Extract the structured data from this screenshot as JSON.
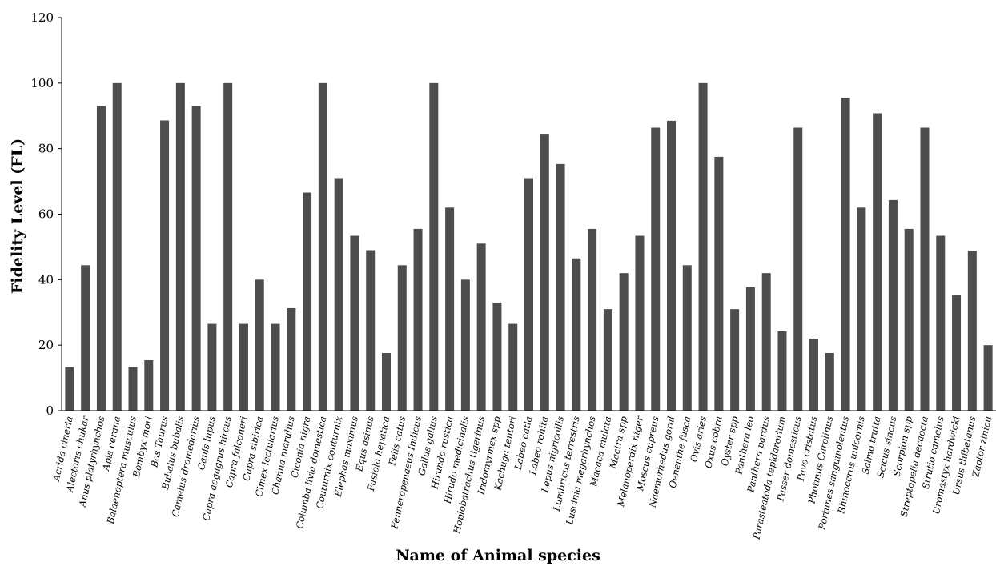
{
  "chart_data": {
    "type": "bar",
    "xlabel": "Name of Animal species",
    "ylabel": "Fidelity Level (FL)",
    "ylim": [
      0,
      120
    ],
    "yticks": [
      0,
      20,
      40,
      60,
      80,
      100,
      120
    ],
    "grid": false,
    "bar_color": "#4d4d4d",
    "categories": [
      "Acrida cineria",
      "Alectoris chukar",
      "Anus platyrhynchos",
      "Apis cerana",
      "Balaenoptera musculus",
      "Bombyx mori",
      "Bos Taurus",
      "Bubalus bubalis",
      "Camelus dromedarius",
      "Canis lupus",
      "Capra aegagrus hircus",
      "Capra falconeri",
      "Capra sibirica",
      "Cimex lectularius",
      "Channa marulius",
      "Ciconia nigra",
      "Columba livia domestica",
      "Couturnix couturnix",
      "Elephas maximus",
      "Equs asinus",
      "Fasiola hepatica",
      "Felis catus",
      "Fenneropenaeus Indicus",
      "Gallus gallus",
      "Hirundo rustica",
      "Hirudo medicinalis",
      "Hoplobatrachus tigerinus",
      "Iridomyrmex spp",
      "Kachuga tentori",
      "Labeo catla",
      "Labeo rohita",
      "Lepus nigricollis",
      "Lumbricus terrestris",
      "Luscinia megarhynchos",
      "Macaca mulata",
      "Mactra spp",
      "Melanoperdix niger",
      "Moscus cupreus",
      "Naemorhedus goral",
      "Oenenthe fusca",
      "Ovis aries",
      "Oxus cobra",
      "Oyster spp",
      "Panthera leo",
      "Panthera pardus",
      "Parasteatoda tepidarorium",
      "Passer domesticus",
      "Pavo cristatus",
      "Photinus Carolinus",
      "Portunes sanguinolentus",
      "Rhinoceros unicornis",
      "Salmo trutta",
      "Scicus sincus",
      "Scorpion spp",
      "Streptopelia decaocta",
      "Strutio camelus",
      "Uromastyx hardwicki",
      "Ursus thibetanus",
      "Zaotor zinicu"
    ],
    "values": [
      13.3,
      44.4,
      93,
      100,
      13.3,
      15.4,
      88.6,
      100,
      93,
      26.5,
      100,
      26.5,
      40,
      26.5,
      31.3,
      66.6,
      100,
      71,
      53.4,
      49,
      17.6,
      44.4,
      55.5,
      100,
      62,
      40,
      51,
      33,
      26.5,
      71,
      84.3,
      75.3,
      46.5,
      55.5,
      31,
      42,
      53.4,
      86.4,
      88.5,
      44.4,
      100,
      77.5,
      31,
      37.7,
      42,
      24.2,
      86.4,
      22,
      17.6,
      95.5,
      62,
      90.8,
      64.3,
      55.5,
      86.4,
      53.4,
      35.3,
      48.8,
      20
    ]
  }
}
